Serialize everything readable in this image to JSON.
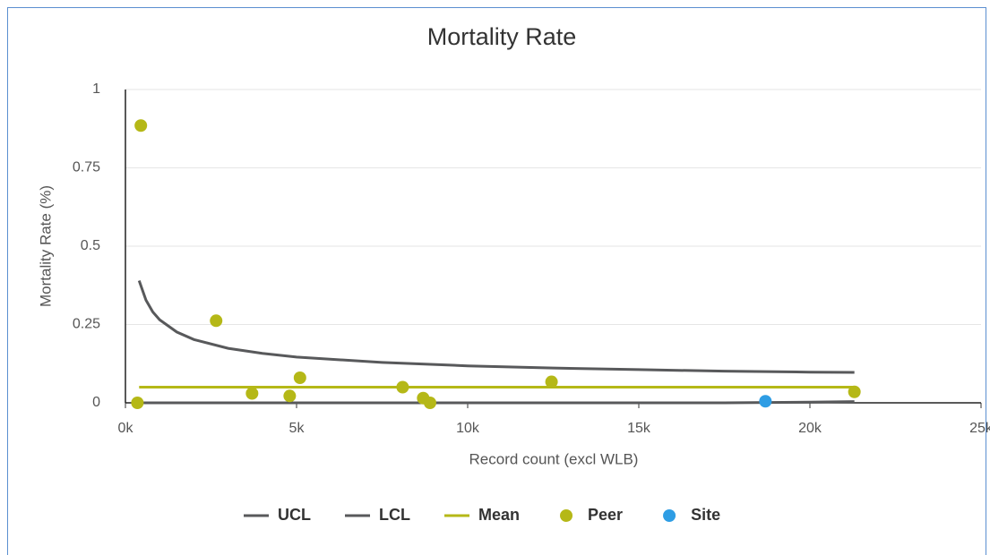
{
  "chart_data": {
    "type": "scatter",
    "title": "Mortality Rate",
    "x_label": "Record count (excl WLB)",
    "y_label": "Mortality Rate (%)",
    "xlim": [
      0,
      25000
    ],
    "ylim": [
      0,
      1
    ],
    "xticks": [
      {
        "value": 0,
        "label": "0k"
      },
      {
        "value": 5000,
        "label": "5k"
      },
      {
        "value": 10000,
        "label": "10k"
      },
      {
        "value": 15000,
        "label": "15k"
      },
      {
        "value": 20000,
        "label": "20k"
      },
      {
        "value": 25000,
        "label": "25k"
      }
    ],
    "yticks": [
      0,
      0.25,
      0.5,
      0.75,
      1
    ],
    "grid": true,
    "legend": "bottom",
    "series": [
      {
        "name": "UCL",
        "type": "line",
        "color": "#58595b",
        "x": [
          400,
          600,
          800,
          1000,
          1500,
          2000,
          3000,
          4000,
          5000,
          7500,
          10000,
          12500,
          15000,
          17500,
          20000,
          21300
        ],
        "values": [
          0.39,
          0.328,
          0.29,
          0.265,
          0.226,
          0.202,
          0.174,
          0.158,
          0.146,
          0.129,
          0.118,
          0.111,
          0.106,
          0.101,
          0.098,
          0.097
        ]
      },
      {
        "name": "LCL",
        "type": "line",
        "color": "#58595b",
        "x": [
          400,
          15000,
          17500,
          20000,
          21300
        ],
        "values": [
          0,
          0,
          0,
          0.002,
          0.004
        ]
      },
      {
        "name": "Mean",
        "type": "line",
        "color": "#b5b817",
        "x": [
          400,
          21300
        ],
        "values": [
          0.05,
          0.05
        ]
      },
      {
        "name": "Peer",
        "type": "scatter",
        "color": "#b5b817",
        "x": [
          350,
          450,
          2650,
          3700,
          4800,
          5100,
          8100,
          8700,
          8900,
          12450,
          21300
        ],
        "values": [
          0,
          0.885,
          0.262,
          0.03,
          0.022,
          0.08,
          0.05,
          0.015,
          0,
          0.067,
          0.035
        ]
      },
      {
        "name": "Site",
        "type": "scatter",
        "color": "#2e9de4",
        "x": [
          18700
        ],
        "values": [
          0.005
        ]
      }
    ]
  }
}
